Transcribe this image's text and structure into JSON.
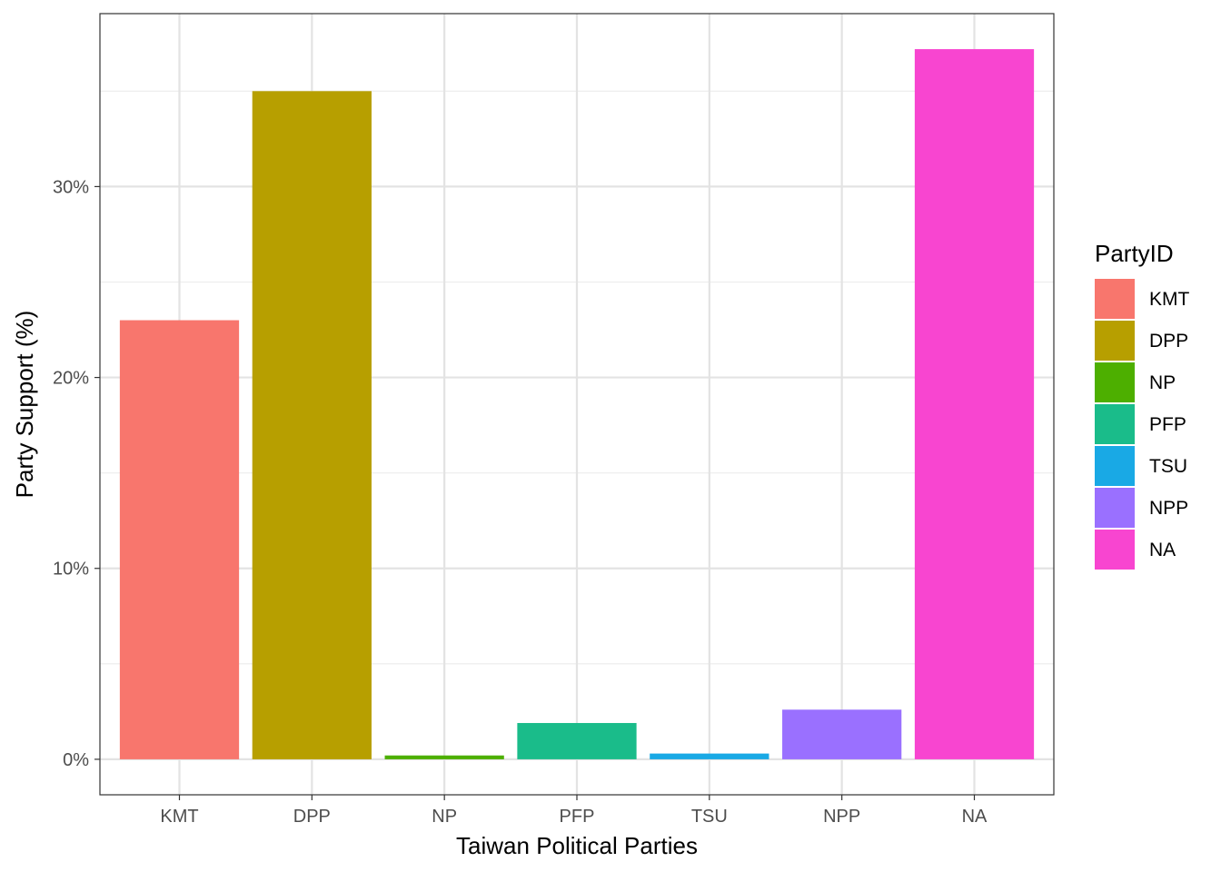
{
  "chart_data": {
    "type": "bar",
    "title": "",
    "xlabel": "Taiwan Political Parties",
    "ylabel": "Party Support (%)",
    "categories": [
      "KMT",
      "DPP",
      "NP",
      "PFP",
      "TSU",
      "NPP",
      "NA"
    ],
    "values": [
      23.0,
      35.0,
      0.2,
      1.9,
      0.3,
      2.6,
      37.2
    ],
    "colors": [
      "#F8766D",
      "#B79F00",
      "#4DAF00",
      "#1ABC8A",
      "#19A9E5",
      "#9A70FF",
      "#F845D0"
    ],
    "ylim": [
      -1.86,
      39.06
    ],
    "yticks": [
      0,
      10,
      20,
      30
    ],
    "ytick_labels": [
      "0%",
      "10%",
      "20%",
      "30%"
    ],
    "grid": true,
    "legend": {
      "title": "PartyID",
      "position": "right",
      "entries": [
        "KMT",
        "DPP",
        "NP",
        "PFP",
        "TSU",
        "NPP",
        "NA"
      ]
    }
  }
}
